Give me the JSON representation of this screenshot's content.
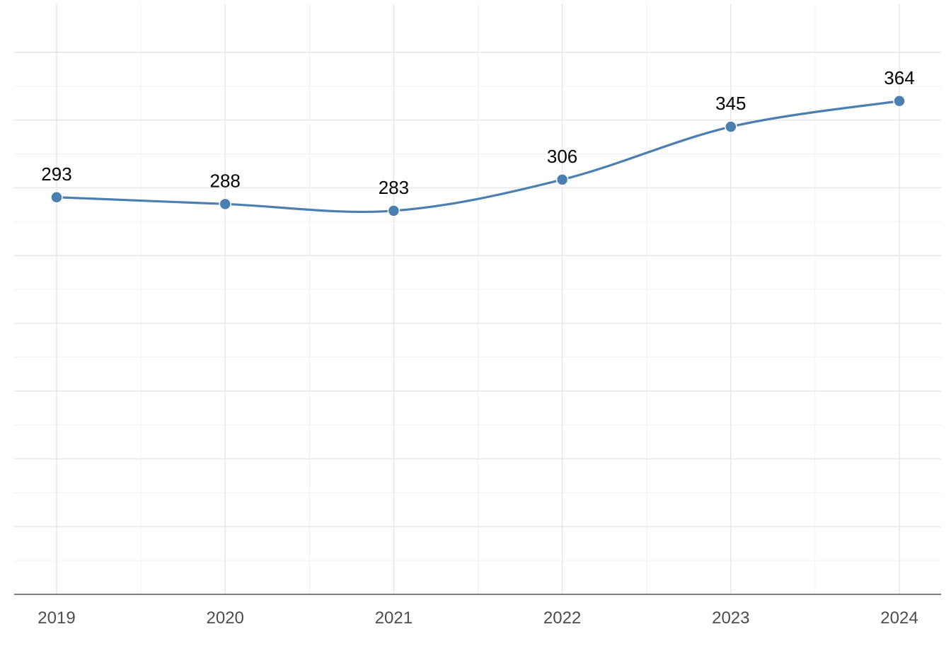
{
  "chart_data": {
    "type": "line",
    "title": "",
    "xlabel": "",
    "ylabel": "",
    "categories": [
      "2019",
      "2020",
      "2021",
      "2022",
      "2023",
      "2024"
    ],
    "series": [
      {
        "values": [
          293,
          288,
          283,
          306,
          345,
          364
        ],
        "color": "#4a7fb0"
      }
    ],
    "data_labels": [
      "293",
      "288",
      "283",
      "306",
      "345",
      "364"
    ],
    "ylim": [
      0,
      400
    ],
    "y_gridlines_every": 50,
    "grid": true,
    "legend": "none",
    "smoothed": true
  }
}
